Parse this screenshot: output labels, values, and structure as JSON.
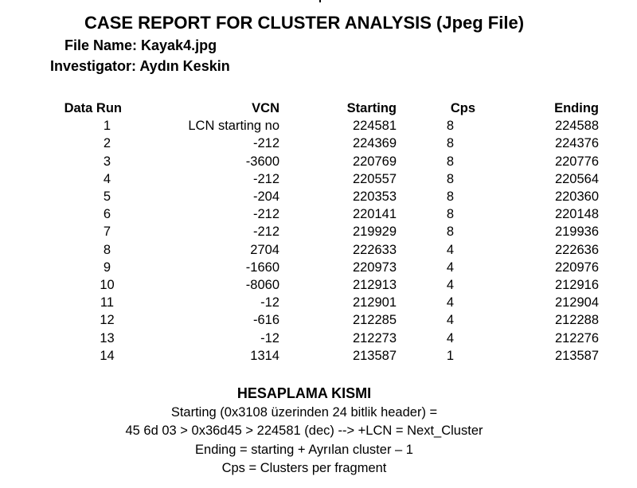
{
  "title": "CASE REPORT FOR CLUSTER ANALYSIS (Jpeg File)",
  "file_line": "File Name: Kayak4.jpg",
  "investigator_line": "Investigator: Aydın Keskin",
  "table": {
    "headers": [
      "Data Run",
      "VCN",
      "Starting",
      "Cps",
      "Ending"
    ],
    "rows": [
      [
        "1",
        "LCN starting no",
        "224581",
        "8",
        "224588"
      ],
      [
        "2",
        "-212",
        "224369",
        "8",
        "224376"
      ],
      [
        "3",
        "-3600",
        "220769",
        "8",
        "220776"
      ],
      [
        "4",
        "-212",
        "220557",
        "8",
        "220564"
      ],
      [
        "5",
        "-204",
        "220353",
        "8",
        "220360"
      ],
      [
        "6",
        "-212",
        "220141",
        "8",
        "220148"
      ],
      [
        "7",
        "-212",
        "219929",
        "8",
        "219936"
      ],
      [
        "8",
        "2704",
        "222633",
        "4",
        "222636"
      ],
      [
        "9",
        "-1660",
        "220973",
        "4",
        "220976"
      ],
      [
        "10",
        "-8060",
        "212913",
        "4",
        "212916"
      ],
      [
        "11",
        "-12",
        "212901",
        "4",
        "212904"
      ],
      [
        "12",
        "-616",
        "212285",
        "4",
        "212288"
      ],
      [
        "13",
        "-12",
        "212273",
        "4",
        "212276"
      ],
      [
        "14",
        "1314",
        "213587",
        "1",
        "213587"
      ]
    ]
  },
  "calculation": {
    "title": "HESAPLAMA KISMI",
    "lines": [
      "Starting (0x3108 üzerinden 24 bitlik header) =",
      "45 6d 03 > 0x36d45 > 224581 (dec) --> +LCN = Next_Cluster",
      "Ending = starting + Ayrılan cluster – 1",
      "Cps = Clusters per fragment"
    ]
  }
}
